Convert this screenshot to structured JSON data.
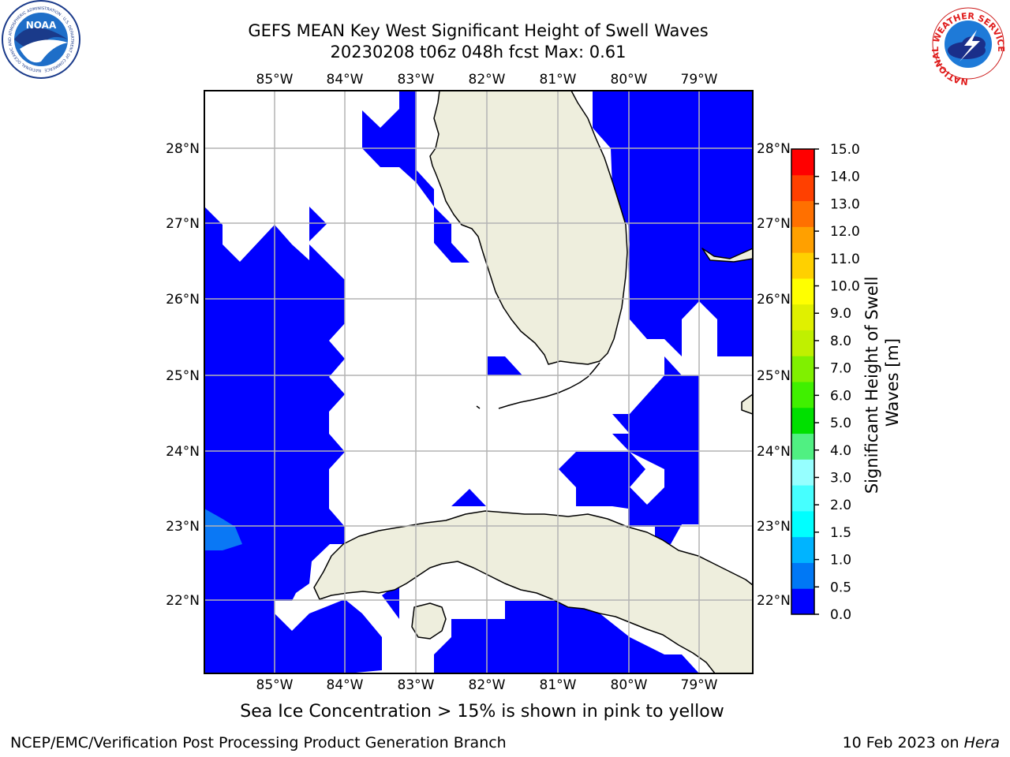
{
  "title": {
    "line1": "GEFS MEAN Key West Significant Height of Swell Waves",
    "line2": "20230208 t06z 048h fcst   Max: 0.61"
  },
  "map": {
    "lon_ticks": [
      "85°W",
      "84°W",
      "83°W",
      "82°W",
      "81°W",
      "80°W",
      "79°W"
    ],
    "lat_ticks": [
      "28°N",
      "27°N",
      "26°N",
      "25°N",
      "24°N",
      "23°N",
      "22°N"
    ],
    "colors": {
      "water_low": "#0000ff",
      "water_mid": "#0a78f5",
      "land": "#eeeedd",
      "grid": "#b4b4b4",
      "coast": "#000000"
    }
  },
  "colorbar": {
    "label": "Significant Height of Swell Waves [m]",
    "ticks": [
      "0.0",
      "0.5",
      "1.0",
      "1.5",
      "2.0",
      "3.0",
      "4.0",
      "5.0",
      "6.0",
      "7.0",
      "8.0",
      "9.0",
      "10.0",
      "11.0",
      "12.0",
      "13.0",
      "14.0",
      "15.0"
    ],
    "colors": [
      "#0000ff",
      "#0078f5",
      "#00b4ff",
      "#00ffff",
      "#46ffff",
      "#96ffff",
      "#50f082",
      "#00e000",
      "#40f000",
      "#80f000",
      "#c0f000",
      "#e0f000",
      "#ffff00",
      "#ffd000",
      "#ffa000",
      "#ff7000",
      "#ff4000",
      "#ff0000"
    ]
  },
  "caption": "Sea Ice Concentration > 15% is shown in pink to yellow",
  "footer": {
    "left": "NCEP/EMC/Verification Post Processing Product Generation Branch",
    "right_date": "10 Feb 2023 on ",
    "right_host": "Hera"
  },
  "logos": {
    "noaa": "NOAA",
    "noaa_ring": "NATIONAL OCEANIC AND ATMOSPHERIC ADMINISTRATION · U.S. DEPARTMENT OF COMMERCE",
    "nws_ring": "NATIONAL WEATHER SERVICE"
  }
}
